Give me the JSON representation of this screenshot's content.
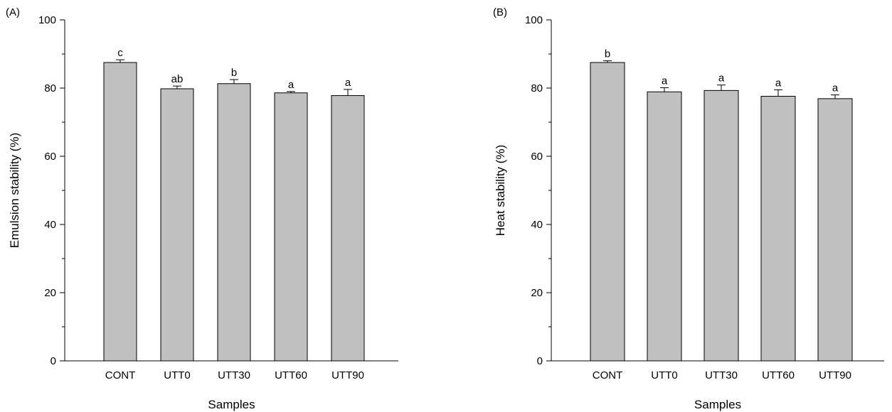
{
  "chart_data": [
    {
      "type": "bar",
      "panel_label": "(A)",
      "categories": [
        "CONT",
        "UTT0",
        "UTT30",
        "UTT60",
        "UTT90"
      ],
      "values": [
        87.5,
        79.8,
        81.3,
        78.6,
        77.8
      ],
      "errors": [
        0.8,
        0.8,
        1.2,
        0.4,
        1.8
      ],
      "significance_letters": [
        "c",
        "ab",
        "b",
        "a",
        "a"
      ],
      "xlabel": "Samples",
      "ylabel": "Emulsion stability (%)",
      "ylim": [
        0,
        100
      ],
      "yticks": [
        0,
        20,
        40,
        60,
        80,
        100
      ],
      "grid": false,
      "bar_color": "#c0c0c0"
    },
    {
      "type": "bar",
      "panel_label": "(B)",
      "categories": [
        "CONT",
        "UTT0",
        "UTT30",
        "UTT60",
        "UTT90"
      ],
      "values": [
        87.5,
        78.9,
        79.3,
        77.6,
        76.9
      ],
      "errors": [
        0.5,
        1.2,
        1.6,
        1.9,
        1.1
      ],
      "significance_letters": [
        "b",
        "a",
        "a",
        "a",
        "a"
      ],
      "xlabel": "Samples",
      "ylabel": "Heat stability (%)",
      "ylim": [
        0,
        100
      ],
      "yticks": [
        0,
        20,
        40,
        60,
        80,
        100
      ],
      "grid": false,
      "bar_color": "#c0c0c0"
    }
  ]
}
